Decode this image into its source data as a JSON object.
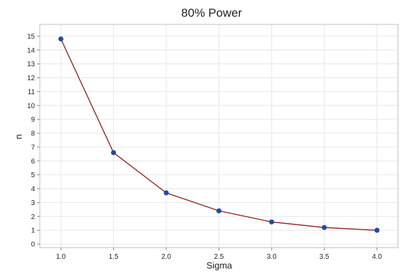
{
  "chart_data": {
    "type": "line",
    "title": "80% Power",
    "xlabel": "Sigma",
    "ylabel": "n",
    "x": [
      1.0,
      1.5,
      2.0,
      2.5,
      3.0,
      3.5,
      4.0
    ],
    "series": [
      {
        "values": [
          14.8,
          6.6,
          3.7,
          2.4,
          1.6,
          1.2,
          1.0
        ]
      }
    ],
    "xticks": [
      "1.0",
      "1.5",
      "2.0",
      "2.5",
      "3.0",
      "3.5",
      "4.0"
    ],
    "yticks": [
      "0",
      "1",
      "2",
      "3",
      "4",
      "5",
      "6",
      "7",
      "8",
      "9",
      "10",
      "11",
      "12",
      "13",
      "14",
      "15"
    ],
    "xlim": [
      0.8,
      4.2
    ],
    "ylim": [
      -0.25,
      15.85
    ],
    "grid": true,
    "colors": {
      "line": "#8b1a1a",
      "marker": "#1f4e9a",
      "grid": "#e6e6e6",
      "frame": "#bdbdbd"
    }
  }
}
